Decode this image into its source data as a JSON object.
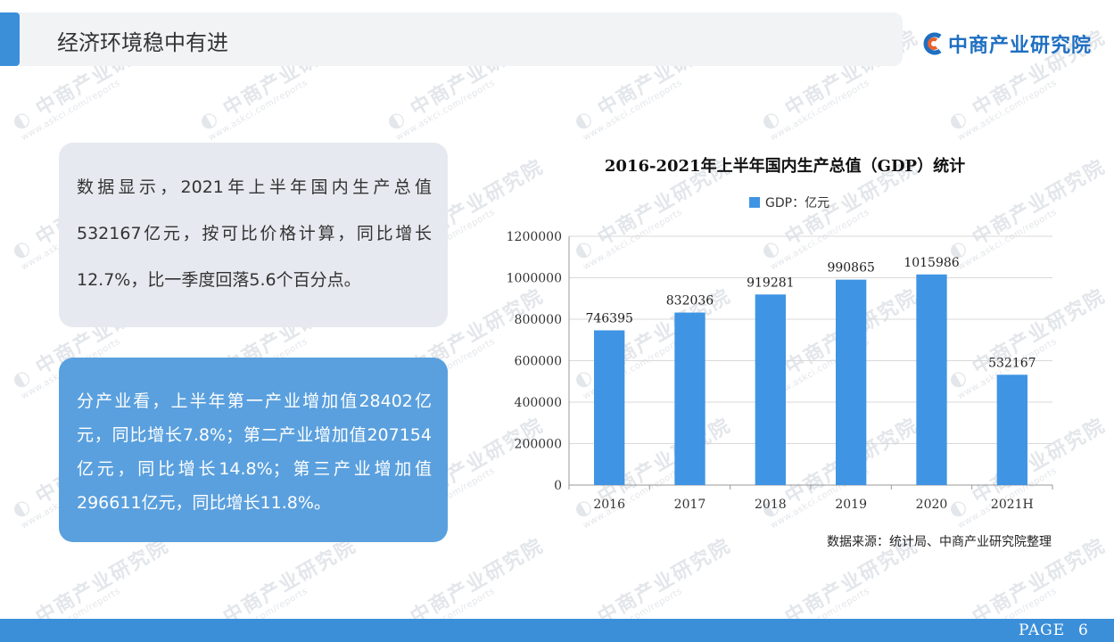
{
  "header": {
    "title": "经济环境稳中有进"
  },
  "logo": {
    "text": "中商产业研究院",
    "icon": "zhongshang-logo-icon"
  },
  "watermark": {
    "text": "中商产业研究院",
    "url": "www.askci.com/reports"
  },
  "cards": [
    {
      "text": "数据显示，2021年上半年国内生产总值532167亿元，按可比价格计算，同比增长12.7%，比一季度回落5.6个百分点。"
    },
    {
      "text": "分产业看，上半年第一产业增加值28402亿元，同比增长7.8%；第二产业增加值207154亿元，同比增长14.8%；第三产业增加值296611亿元，同比增长11.8%。"
    }
  ],
  "chart_data": {
    "type": "bar",
    "title": "2016-2021年上半年国内生产总值（GDP）统计",
    "categories": [
      "2016",
      "2017",
      "2018",
      "2019",
      "2020",
      "2021H"
    ],
    "series": [
      {
        "name": "GDP：亿元",
        "values": [
          746395,
          832036,
          919281,
          990865,
          1015986,
          532167
        ]
      }
    ],
    "ylim": [
      0,
      1200000
    ],
    "yticks": [
      0,
      200000,
      400000,
      600000,
      800000,
      1000000,
      1200000
    ],
    "xlabel": "",
    "ylabel": "",
    "grid": true,
    "legend": "top-center",
    "data_labels": true,
    "bar_color": "#3f94e4"
  },
  "source_note": "数据来源：统计局、中商产业研究院整理",
  "footer": {
    "page_label": "PAGE",
    "page_number": "6"
  },
  "colors": {
    "accent": "#3b8fd9",
    "card_light": "#e6e9ef",
    "card_blue": "#5aa0de",
    "logo": "#1f6fc1"
  }
}
